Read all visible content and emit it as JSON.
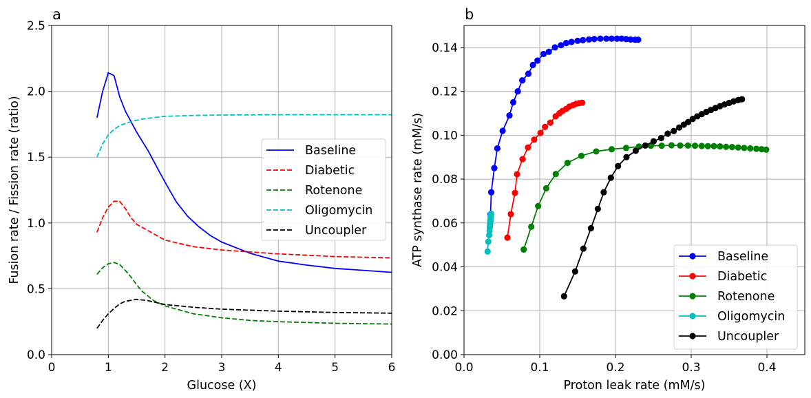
{
  "chart_data": [
    {
      "type": "line",
      "panel_label": "a",
      "xlabel": "Glucose (X)",
      "ylabel": "Fusion rate / Fission rate (ratio)",
      "xlim": [
        0,
        6
      ],
      "ylim": [
        0,
        2.5
      ],
      "xticks": [
        "0",
        "1",
        "2",
        "3",
        "4",
        "5",
        "6"
      ],
      "yticks": [
        "0.0",
        "0.5",
        "1.0",
        "1.5",
        "2.0",
        "2.5"
      ],
      "grid": true,
      "legend_position": "center-right",
      "series": [
        {
          "name": "Baseline",
          "color": "#0000ff",
          "style": "solid",
          "x": [
            0.8,
            0.9,
            1.0,
            1.1,
            1.2,
            1.3,
            1.4,
            1.5,
            1.6,
            1.7,
            1.8,
            1.9,
            2.0,
            2.2,
            2.4,
            2.6,
            2.8,
            3.0,
            3.5,
            4.0,
            4.5,
            5.0,
            5.5,
            6.0
          ],
          "y": [
            1.8,
            2.0,
            2.14,
            2.12,
            1.96,
            1.85,
            1.77,
            1.69,
            1.62,
            1.55,
            1.47,
            1.39,
            1.31,
            1.16,
            1.05,
            0.97,
            0.905,
            0.855,
            0.77,
            0.71,
            0.68,
            0.655,
            0.64,
            0.625
          ]
        },
        {
          "name": "Diabetic",
          "color": "#ff0000",
          "style": "dashed",
          "x": [
            0.8,
            0.9,
            1.0,
            1.1,
            1.2,
            1.3,
            1.4,
            1.5,
            1.75,
            2.0,
            2.5,
            3.0,
            3.5,
            4.0,
            5.0,
            6.0
          ],
          "y": [
            0.93,
            1.04,
            1.12,
            1.165,
            1.165,
            1.11,
            1.04,
            0.99,
            0.93,
            0.87,
            0.82,
            0.795,
            0.78,
            0.765,
            0.745,
            0.735
          ]
        },
        {
          "name": "Rotenone",
          "color": "#008000",
          "style": "dashed",
          "x": [
            0.8,
            0.9,
            1.0,
            1.1,
            1.2,
            1.3,
            1.4,
            1.5,
            1.6,
            1.8,
            2.0,
            2.5,
            3.0,
            3.5,
            4.0,
            5.0,
            6.0
          ],
          "y": [
            0.61,
            0.66,
            0.69,
            0.7,
            0.685,
            0.64,
            0.59,
            0.53,
            0.48,
            0.41,
            0.37,
            0.31,
            0.28,
            0.26,
            0.25,
            0.238,
            0.232
          ]
        },
        {
          "name": "Oligomycin",
          "color": "#00bfbf",
          "style": "dashed",
          "x": [
            0.8,
            0.9,
            1.0,
            1.1,
            1.2,
            1.4,
            1.6,
            2.0,
            2.5,
            3.0,
            4.0,
            6.0
          ],
          "y": [
            1.5,
            1.6,
            1.67,
            1.71,
            1.74,
            1.77,
            1.79,
            1.81,
            1.817,
            1.82,
            1.822,
            1.822
          ]
        },
        {
          "name": "Uncoupler",
          "color": "#000000",
          "style": "dashed",
          "x": [
            0.8,
            0.9,
            1.0,
            1.1,
            1.2,
            1.3,
            1.5,
            1.7,
            2.0,
            2.5,
            3.0,
            4.0,
            5.0,
            6.0
          ],
          "y": [
            0.2,
            0.26,
            0.31,
            0.35,
            0.385,
            0.405,
            0.42,
            0.41,
            0.38,
            0.36,
            0.345,
            0.33,
            0.32,
            0.315
          ]
        }
      ]
    },
    {
      "type": "line",
      "panel_label": "b",
      "xlabel": "Proton leak rate (mM/s)",
      "ylabel": "ATP synthase rate (mM/s)",
      "xlim": [
        0,
        0.45
      ],
      "ylim": [
        0,
        0.15
      ],
      "xticks": [
        "0.0",
        "0.1",
        "0.2",
        "0.3",
        "0.4"
      ],
      "yticks": [
        "0.00",
        "0.02",
        "0.04",
        "0.06",
        "0.08",
        "0.10",
        "0.12",
        "0.14"
      ],
      "grid": true,
      "legend_position": "lower-right",
      "series": [
        {
          "name": "Baseline",
          "color": "#0000ff",
          "marker": "circle",
          "x": [
            0.035,
            0.036,
            0.04,
            0.044,
            0.051,
            0.06,
            0.065,
            0.071,
            0.077,
            0.085,
            0.091,
            0.097,
            0.105,
            0.112,
            0.12,
            0.128,
            0.135,
            0.142,
            0.15,
            0.157,
            0.165,
            0.172,
            0.18,
            0.188,
            0.195,
            0.202,
            0.208,
            0.214,
            0.22,
            0.226,
            0.23
          ],
          "y": [
            0.064,
            0.074,
            0.085,
            0.094,
            0.102,
            0.109,
            0.115,
            0.12,
            0.125,
            0.128,
            0.132,
            0.134,
            0.137,
            0.138,
            0.14,
            0.141,
            0.142,
            0.1425,
            0.143,
            0.1433,
            0.1436,
            0.1438,
            0.144,
            0.144,
            0.144,
            0.144,
            0.144,
            0.1438,
            0.1436,
            0.1435,
            0.1435
          ]
        },
        {
          "name": "Diabetic",
          "color": "#ff0000",
          "marker": "circle",
          "x": [
            0.0573,
            0.0618,
            0.0673,
            0.07,
            0.0773,
            0.0845,
            0.0927,
            0.101,
            0.107,
            0.114,
            0.121,
            0.126,
            0.13,
            0.135,
            0.139,
            0.144,
            0.148,
            0.152,
            0.156
          ],
          "y": [
            0.0533,
            0.064,
            0.0737,
            0.0822,
            0.0891,
            0.0944,
            0.098,
            0.101,
            0.1038,
            0.1057,
            0.1086,
            0.11,
            0.111,
            0.112,
            0.113,
            0.1137,
            0.1143,
            0.1146,
            0.1148
          ]
        },
        {
          "name": "Rotenone",
          "color": "#008000",
          "marker": "circle",
          "x": [
            0.0788,
            0.0888,
            0.0979,
            0.1085,
            0.1212,
            0.1367,
            0.155,
            0.1745,
            0.195,
            0.214,
            0.231,
            0.2467,
            0.261,
            0.274,
            0.2855,
            0.2957,
            0.305,
            0.314,
            0.322,
            0.33,
            0.338,
            0.346,
            0.354,
            0.362,
            0.37,
            0.378,
            0.386,
            0.393,
            0.399
          ],
          "y": [
            0.0479,
            0.0583,
            0.0677,
            0.0758,
            0.0823,
            0.0874,
            0.0906,
            0.0926,
            0.0936,
            0.0942,
            0.0948,
            0.0952,
            0.0952,
            0.0954,
            0.0953,
            0.0953,
            0.0952,
            0.0951,
            0.095,
            0.095,
            0.0949,
            0.0947,
            0.0946,
            0.0944,
            0.0942,
            0.094,
            0.0938,
            0.0936,
            0.0934
          ]
        },
        {
          "name": "Oligomycin",
          "color": "#00bfbf",
          "marker": "circle",
          "x": [
            0.0312,
            0.0321,
            0.0333,
            0.0338,
            0.034,
            0.0343,
            0.0346,
            0.0349,
            0.0351,
            0.0353,
            0.0355,
            0.0356,
            0.0357
          ],
          "y": [
            0.047,
            0.0515,
            0.0545,
            0.0565,
            0.058,
            0.059,
            0.06,
            0.061,
            0.062,
            0.0627,
            0.0633,
            0.0638,
            0.0642
          ]
        },
        {
          "name": "Uncoupler",
          "color": "#000000",
          "marker": "circle",
          "x": [
            0.1321,
            0.1467,
            0.1576,
            0.1676,
            0.1767,
            0.1845,
            0.1939,
            0.2033,
            0.2145,
            0.2267,
            0.2394,
            0.2503,
            0.2603,
            0.269,
            0.277,
            0.2842,
            0.2903,
            0.296,
            0.302,
            0.308,
            0.314,
            0.32,
            0.326,
            0.332,
            0.338,
            0.344,
            0.35,
            0.356,
            0.362,
            0.367
          ],
          "y": [
            0.0266,
            0.0379,
            0.0483,
            0.0576,
            0.0664,
            0.074,
            0.0806,
            0.0859,
            0.09,
            0.0929,
            0.0953,
            0.0972,
            0.0987,
            0.1007,
            0.1019,
            0.1035,
            0.1048,
            0.106,
            0.1074,
            0.1086,
            0.1096,
            0.1106,
            0.1115,
            0.1124,
            0.1132,
            0.114,
            0.1147,
            0.1154,
            0.116,
            0.1164
          ]
        }
      ]
    }
  ]
}
